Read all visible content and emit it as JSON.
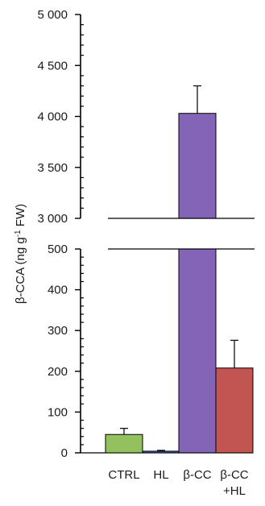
{
  "chart_data": {
    "type": "bar",
    "broken_axis": true,
    "ylabel": {
      "main": "β-CCA  (ng g",
      "sup": "-1",
      "tail": " FW)"
    },
    "categories": [
      "CTRL",
      "HL",
      "β-CC",
      "β-CC+HL"
    ],
    "category_label_lines": [
      [
        "CTRL"
      ],
      [
        "HL"
      ],
      [
        "β-CC"
      ],
      [
        "β-CC",
        "+HL"
      ]
    ],
    "values": [
      45,
      4,
      4030,
      208
    ],
    "errors": [
      15,
      2,
      270,
      68
    ],
    "colors": [
      "#93c15e",
      "#3f65b8",
      "#8464b6",
      "#c25452"
    ],
    "lower_segment": {
      "ylim": [
        0,
        500
      ],
      "ticks": [
        "0",
        "100",
        "200",
        "300",
        "400",
        "500"
      ],
      "tick_values": [
        0,
        100,
        200,
        300,
        400,
        500
      ]
    },
    "upper_segment": {
      "ylim": [
        3000,
        5000
      ],
      "ticks": [
        "3 000",
        "3 500",
        "4 000",
        "4 500",
        "5 000"
      ],
      "tick_values": [
        3000,
        3500,
        4000,
        4500,
        5000
      ]
    },
    "grid": false,
    "legend": "none"
  }
}
